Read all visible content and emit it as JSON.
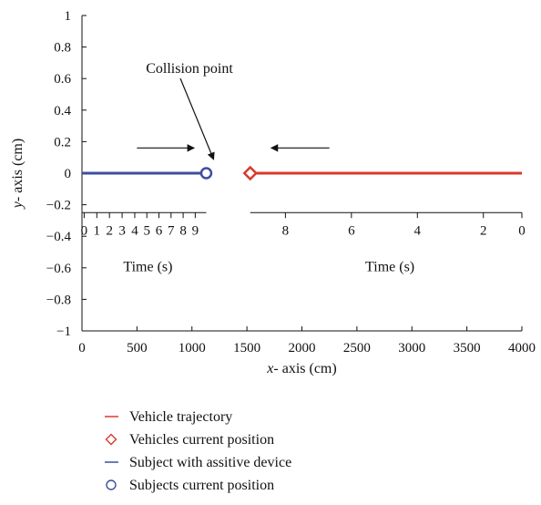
{
  "chart_data": {
    "type": "line",
    "xlabel_prefix": "x",
    "xlabel_rest": "- axis (cm)",
    "ylabel_prefix": "y",
    "ylabel_rest": "- axis (cm)",
    "xlim": [
      0,
      4000
    ],
    "ylim": [
      -1,
      1
    ],
    "x_ticks": [
      0,
      500,
      1000,
      1500,
      2000,
      2500,
      3000,
      3500,
      4000
    ],
    "y_ticks": [
      {
        "v": 1,
        "label": "1"
      },
      {
        "v": 0.8,
        "label": "0.8"
      },
      {
        "v": 0.6,
        "label": "0.6"
      },
      {
        "v": 0.4,
        "label": "0.4"
      },
      {
        "v": 0.2,
        "label": "0.2"
      },
      {
        "v": 0,
        "label": "0"
      },
      {
        "v": -0.2,
        "label": "−0.2"
      },
      {
        "v": -0.4,
        "label": "−0.4"
      },
      {
        "v": -0.6,
        "label": "−0.6"
      },
      {
        "v": -0.8,
        "label": "−0.8"
      },
      {
        "v": -1,
        "label": "−1"
      }
    ],
    "grid": false,
    "series": [
      {
        "name": "Vehicle trajectory",
        "color": "#d93a2b",
        "x": [
          1530,
          4000
        ],
        "y": [
          0,
          0
        ]
      },
      {
        "name": "Subject with assitive device",
        "color": "#3e4ea0",
        "x": [
          0,
          1130
        ],
        "y": [
          0,
          0
        ]
      }
    ],
    "markers": [
      {
        "name": "Vehicles current position",
        "shape": "diamond",
        "color": "#d93a2b",
        "x": 1530,
        "y": 0
      },
      {
        "name": "Subjects current position",
        "shape": "circle",
        "color": "#3e4ea0",
        "x": 1130,
        "y": 0
      }
    ],
    "annotation": {
      "text": "Collision point",
      "target_x": 1330,
      "target_y": 0
    },
    "direction_arrows": [
      {
        "x_from": 500,
        "x_to": 1020,
        "y": 0.16
      },
      {
        "x_from": 2250,
        "x_to": 1720,
        "y": 0.16
      }
    ],
    "time_axes": [
      {
        "label": "Time (s)",
        "y": -0.25,
        "x_start": 0,
        "x_end": 1130,
        "ticks": [
          {
            "x": 20,
            "label": "0"
          },
          {
            "x": 135,
            "label": "1"
          },
          {
            "x": 250,
            "label": "2"
          },
          {
            "x": 365,
            "label": "3"
          },
          {
            "x": 480,
            "label": "4"
          },
          {
            "x": 590,
            "label": "5"
          },
          {
            "x": 700,
            "label": "6"
          },
          {
            "x": 810,
            "label": "7"
          },
          {
            "x": 920,
            "label": "8"
          },
          {
            "x": 1030,
            "label": "9"
          }
        ],
        "label_x": 600
      },
      {
        "label": "Time (s)",
        "y": -0.25,
        "x_start": 1530,
        "x_end": 4000,
        "ticks": [
          {
            "x": 1850,
            "label": "8"
          },
          {
            "x": 2450,
            "label": "6"
          },
          {
            "x": 3050,
            "label": "4"
          },
          {
            "x": 3650,
            "label": "2"
          },
          {
            "x": 4000,
            "label": "0"
          }
        ],
        "label_x": 2800
      }
    ],
    "legend_position": "bottom"
  }
}
